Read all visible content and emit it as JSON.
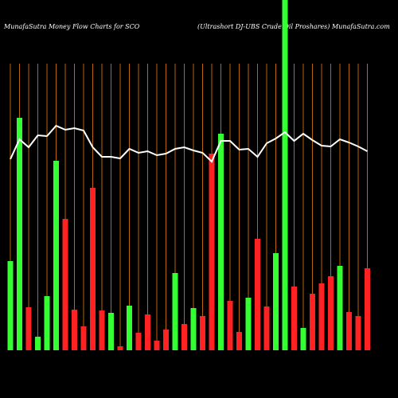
{
  "chart_data": {
    "type": "bar",
    "title": "MunafaSutra  Money Flow  Charts for SCO",
    "subtitle": "(Ultrashort DJ-UBS Crude    Oil Proshares) MunafaSutra.com",
    "categories": [
      null,
      null,
      null,
      null,
      null,
      null,
      null,
      null,
      null,
      null,
      null,
      null,
      null,
      null,
      null,
      null,
      null,
      null,
      null,
      null,
      null,
      null,
      null,
      null,
      null,
      null,
      null,
      null,
      null,
      null,
      null,
      null,
      null,
      null,
      null,
      null,
      null,
      null,
      null,
      null
    ],
    "ylim": [
      0,
      440
    ],
    "series": [
      {
        "type": "bar",
        "values": [
          112,
          292,
          54,
          17,
          68,
          238,
          165,
          51,
          30,
          204,
          50,
          47,
          5,
          56,
          22,
          45,
          12,
          26,
          97,
          33,
          53,
          43,
          247,
          272,
          62,
          23,
          66,
          140,
          55,
          122,
          440,
          80,
          28,
          71,
          84,
          93,
          106,
          48,
          43,
          103
        ],
        "colors": [
          "#33ff33",
          "#33ff33",
          "#ff2222",
          "#33ff33",
          "#33ff33",
          "#33ff33",
          "#ff2222",
          "#ff2222",
          "#ff2222",
          "#ff2222",
          "#ff2222",
          "#33ff33",
          "#ff2222",
          "#33ff33",
          "#ff2222",
          "#ff2222",
          "#ff2222",
          "#ff2222",
          "#33ff33",
          "#ff2222",
          "#33ff33",
          "#ff2222",
          "#ff2222",
          "#33ff33",
          "#ff2222",
          "#ff2222",
          "#33ff33",
          "#ff2222",
          "#ff2222",
          "#33ff33",
          "#33ff33",
          "#ff2222",
          "#33ff33",
          "#ff2222",
          "#ff2222",
          "#ff2222",
          "#33ff33",
          "#ff2222",
          "#ff2222",
          "#ff2222"
        ]
      },
      {
        "type": "line",
        "color": "#ffffff",
        "values": [
          240,
          265,
          255,
          270,
          269,
          282,
          277,
          279,
          276,
          255,
          243,
          243,
          241,
          253,
          248,
          250,
          245,
          247,
          253,
          255,
          251,
          248,
          237,
          263,
          263,
          252,
          253,
          243,
          260,
          266,
          274,
          263,
          272,
          264,
          257,
          256,
          265,
          261,
          256,
          250
        ]
      }
    ]
  }
}
